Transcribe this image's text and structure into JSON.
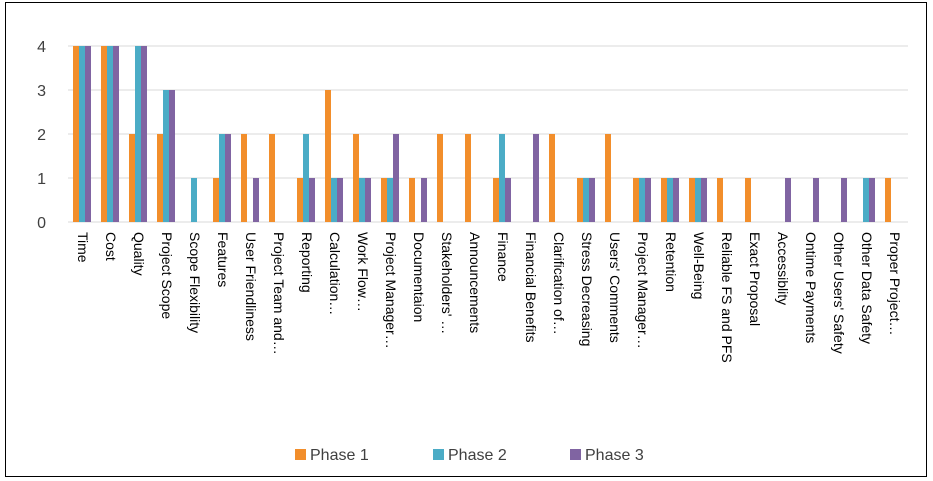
{
  "chart_data": {
    "type": "bar",
    "categories": [
      "Time",
      "Cost",
      "Quality",
      "Project Scope",
      "Scope Flexibility",
      "Features",
      "User Friendliness",
      "Project Team and…",
      "Reporting",
      "Calculation…",
      "Work Flow…",
      "Project Manager…",
      "Documentaion",
      "Stakeholders' …",
      "Announcements",
      "Finance",
      "Financial Benefits",
      "Clarification of…",
      "Stress Decreasing",
      "Users' Comments",
      "Project Manager…",
      "Retention",
      "Well-Being",
      "Reliable FS and PFS",
      "Exact Proposal",
      "Accessiblity",
      "Ontime Payments",
      "Other Users' Safety",
      "Other Data Safety",
      "Proper Project…"
    ],
    "series": [
      {
        "name": "Phase 1",
        "color": "#F28E2B",
        "values": [
          4,
          4,
          2,
          2,
          0,
          1,
          2,
          2,
          1,
          3,
          2,
          1,
          1,
          2,
          2,
          1,
          0,
          2,
          1,
          2,
          1,
          1,
          1,
          1,
          1,
          0,
          0,
          0,
          0,
          1
        ]
      },
      {
        "name": "Phase 2",
        "color": "#4BACC6",
        "values": [
          4,
          4,
          4,
          3,
          1,
          2,
          0,
          0,
          2,
          1,
          1,
          1,
          0,
          0,
          0,
          2,
          0,
          0,
          1,
          0,
          1,
          1,
          1,
          0,
          0,
          0,
          0,
          0,
          1,
          0
        ]
      },
      {
        "name": "Phase 3",
        "color": "#8064A2",
        "values": [
          4,
          4,
          4,
          3,
          0,
          2,
          1,
          0,
          1,
          1,
          1,
          2,
          1,
          0,
          0,
          1,
          2,
          0,
          1,
          0,
          1,
          1,
          1,
          0,
          0,
          1,
          1,
          1,
          1,
          0
        ]
      }
    ],
    "y_ticks": [
      "0",
      "1",
      "2",
      "3",
      "4"
    ],
    "ylim": [
      0,
      4
    ],
    "grid": true,
    "legend_position": "bottom"
  }
}
